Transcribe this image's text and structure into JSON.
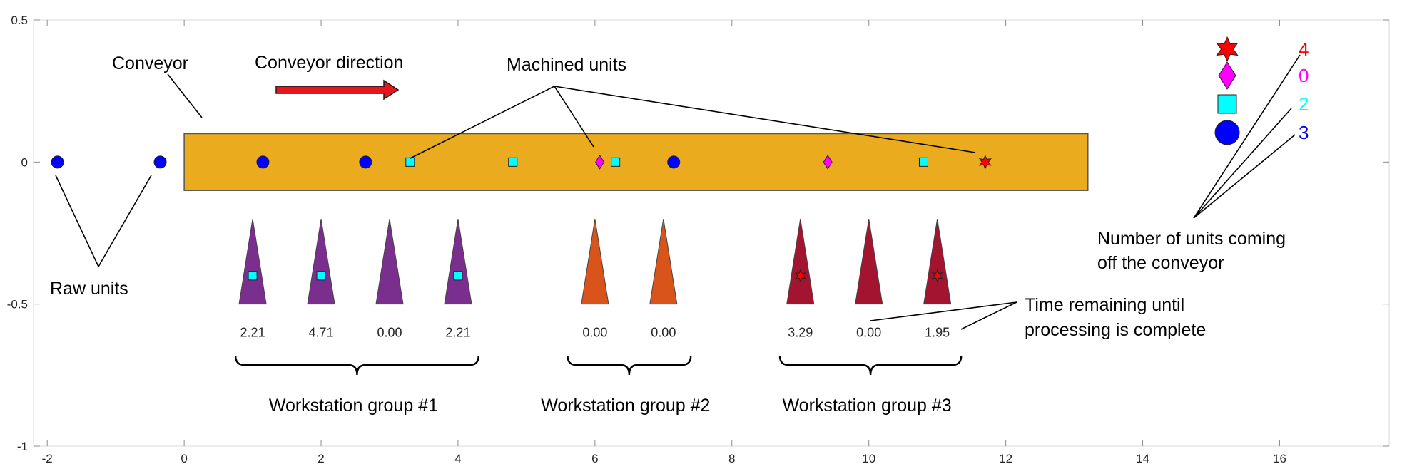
{
  "axes": {
    "xlim": [
      -2.2,
      17.6
    ],
    "ylim": [
      -1,
      0.5
    ],
    "x_ticks": [
      "-2",
      "0",
      "2",
      "4",
      "6",
      "8",
      "10",
      "12",
      "14",
      "16"
    ],
    "x_tick_values": [
      -2,
      0,
      2,
      4,
      6,
      8,
      10,
      12,
      14,
      16
    ],
    "y_ticks": [
      "0.5",
      "0",
      "-0.5",
      "-1"
    ],
    "y_tick_values": [
      0.5,
      0,
      -0.5,
      -1
    ]
  },
  "colors": {
    "conveyor": "#EBAB1F",
    "arrow": "#E8161C",
    "group1": "#7A2F8E",
    "group2": "#D9541A",
    "group3": "#A2142F",
    "raw": "#0000FF",
    "machined_square": "#00FFFF",
    "machined_diamond": "#FF00FF",
    "machined_star": "#FF0000"
  },
  "conveyor": {
    "x_start": 0,
    "x_end": 13.2,
    "y_low": -0.1,
    "y_high": 0.1
  },
  "units_on_line": [
    {
      "type": "circle",
      "x": -1.85,
      "y": 0
    },
    {
      "type": "circle",
      "x": -0.35,
      "y": 0
    },
    {
      "type": "circle",
      "x": 1.15,
      "y": 0
    },
    {
      "type": "circle",
      "x": 2.65,
      "y": 0
    },
    {
      "type": "square",
      "x": 3.3,
      "y": 0
    },
    {
      "type": "square",
      "x": 4.8,
      "y": 0
    },
    {
      "type": "diamond",
      "x": 6.07,
      "y": 0
    },
    {
      "type": "square",
      "x": 6.3,
      "y": 0
    },
    {
      "type": "circle",
      "x": 7.15,
      "y": 0
    },
    {
      "type": "diamond",
      "x": 9.4,
      "y": 0
    },
    {
      "type": "square",
      "x": 10.8,
      "y": 0
    },
    {
      "type": "star",
      "x": 11.7,
      "y": 0
    }
  ],
  "workstations": [
    {
      "group": 1,
      "x": 1.0,
      "time": "2.21",
      "unit": "square"
    },
    {
      "group": 1,
      "x": 2.0,
      "time": "4.71",
      "unit": "square"
    },
    {
      "group": 1,
      "x": 3.0,
      "time": "0.00",
      "unit": null
    },
    {
      "group": 1,
      "x": 4.0,
      "time": "2.21",
      "unit": "square"
    },
    {
      "group": 2,
      "x": 6.0,
      "time": "0.00",
      "unit": null
    },
    {
      "group": 2,
      "x": 7.0,
      "time": "0.00",
      "unit": null
    },
    {
      "group": 3,
      "x": 9.0,
      "time": "3.29",
      "unit": "star"
    },
    {
      "group": 3,
      "x": 10.0,
      "time": "0.00",
      "unit": null
    },
    {
      "group": 3,
      "x": 11.0,
      "time": "1.95",
      "unit": "star"
    }
  ],
  "group_labels": [
    {
      "text": "Workstation group #1",
      "x_start": 0.75,
      "x_end": 4.3
    },
    {
      "text": "Workstation group #2",
      "x_start": 5.6,
      "x_end": 7.4
    },
    {
      "text": "Workstation group #3",
      "x_start": 8.7,
      "x_end": 11.35
    }
  ],
  "counts": [
    {
      "type": "star",
      "value": "4"
    },
    {
      "type": "diamond",
      "value": "0"
    },
    {
      "type": "square",
      "value": "2"
    },
    {
      "type": "circle",
      "value": "3"
    }
  ],
  "annotations": {
    "conveyor": "Conveyor",
    "conveyor_direction": "Conveyor direction",
    "machined_units": "Machined units",
    "raw_units": "Raw units",
    "count_label_line1": "Number of units coming",
    "count_label_line2": "off the conveyor",
    "time_label_line1": "Time remaining until",
    "time_label_line2": "processing is complete"
  }
}
